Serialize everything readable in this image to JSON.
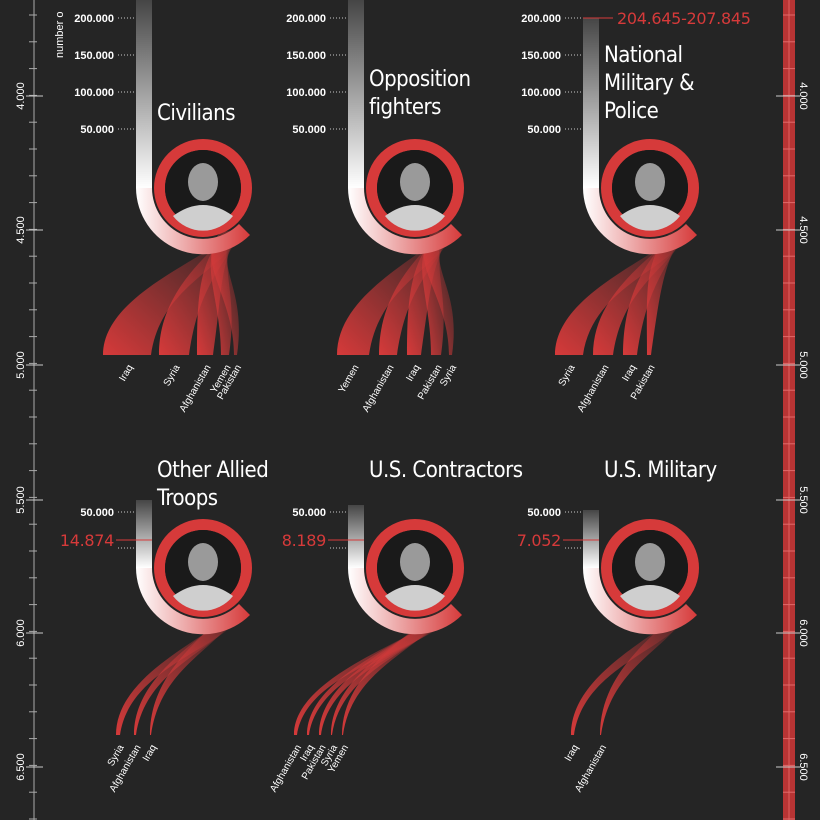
{
  "axis": {
    "label": "number o",
    "ticks": [
      "4.000",
      "4.500",
      "5.000",
      "5.500",
      "6.000",
      "6.500"
    ]
  },
  "colors": {
    "background": "#252525",
    "accent": "#d63a3a",
    "stem": "#ffffff"
  },
  "chart_data": {
    "type": "flow",
    "panels": [
      {
        "title": [
          "Civilians"
        ],
        "scale_ticks": [
          "200.000",
          "150.000",
          "100.000",
          "50.000"
        ],
        "value": "",
        "photo": "child-portrait",
        "countries": [
          "Iraq",
          "Syria",
          "Afghanistan",
          "Yemen",
          "Pakistan"
        ]
      },
      {
        "title": [
          "Opposition",
          "fighters"
        ],
        "scale_ticks": [
          "200.000",
          "150.000",
          "100.000",
          "50.000"
        ],
        "value": "",
        "photo": "fighter-portrait",
        "countries": [
          "Yemen",
          "Afghanistan",
          "Iraq",
          "Pakistan",
          "Syria"
        ]
      },
      {
        "title": [
          "National",
          "Military &",
          "Police"
        ],
        "scale_ticks": [
          "200.000",
          "150.000",
          "100.000",
          "50.000"
        ],
        "value": "204.645-207.845",
        "photo": "soldier-portrait",
        "countries": [
          "Syria",
          "Afghanistan",
          "Iraq",
          "Pakistan"
        ]
      },
      {
        "title": [
          "Other Allied",
          "Troops"
        ],
        "scale_ticks": [
          "50.000"
        ],
        "value": "14.874",
        "photo": "allied-soldier-portrait",
        "countries": [
          "Syria",
          "Afghanistan",
          "Iraq"
        ]
      },
      {
        "title": [
          "U.S. Contractors"
        ],
        "scale_ticks": [
          "50.000"
        ],
        "value": "8.189",
        "photo": "contractor-portrait",
        "countries": [
          "Afghanistan",
          "Iraq",
          "Pakistan",
          "Syria",
          "Yemen"
        ]
      },
      {
        "title": [
          "U.S. Military"
        ],
        "scale_ticks": [
          "50.000"
        ],
        "value": "7.052",
        "photo": "us-soldier-portrait",
        "countries": [
          "Iraq",
          "Afghanistan"
        ]
      }
    ]
  }
}
